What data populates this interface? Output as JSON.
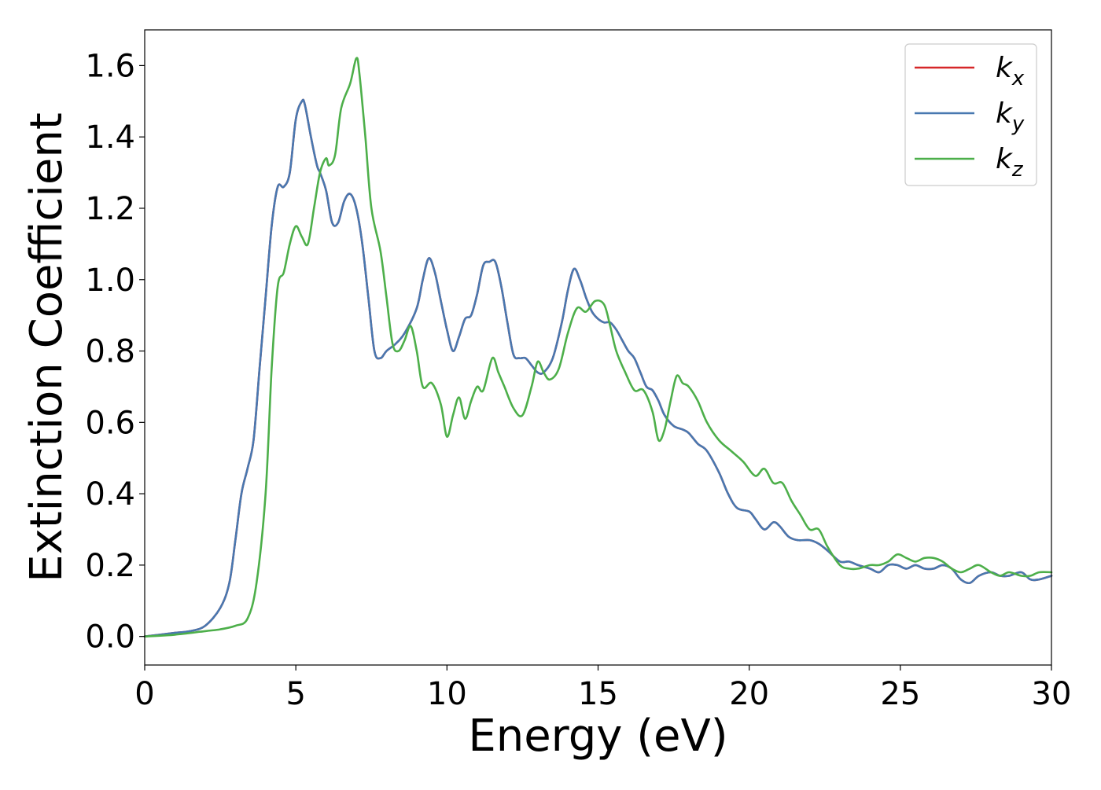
{
  "chart_data": {
    "type": "line",
    "xlabel": "Energy (eV)",
    "ylabel": "Extinction Coefficient",
    "xlim": [
      0,
      30
    ],
    "ylim": [
      -0.08,
      1.7
    ],
    "xticks": [
      0,
      5,
      10,
      15,
      20,
      25,
      30
    ],
    "yticks": [
      0.0,
      0.2,
      0.4,
      0.6,
      0.8,
      1.0,
      1.2,
      1.4,
      1.6
    ],
    "ytick_format": 1,
    "grid": false,
    "legend_position": "top-right",
    "series": [
      {
        "name": "k",
        "subscript": "x",
        "color": "#d62728",
        "x": [
          0,
          1,
          1.5,
          2,
          2.5,
          2.8,
          3.0,
          3.2,
          3.4,
          3.6,
          3.8,
          4.0,
          4.2,
          4.4,
          4.6,
          4.8,
          5.0,
          5.2,
          5.3,
          5.5,
          5.7,
          5.8,
          6.0,
          6.2,
          6.4,
          6.6,
          6.8,
          7.0,
          7.2,
          7.4,
          7.6,
          7.8,
          8.0,
          8.3,
          8.6,
          9.0,
          9.2,
          9.4,
          9.6,
          9.8,
          10.0,
          10.2,
          10.4,
          10.6,
          10.8,
          11.0,
          11.2,
          11.4,
          11.6,
          11.8,
          12.0,
          12.2,
          12.4,
          12.6,
          12.8,
          13.0,
          13.2,
          13.5,
          13.8,
          14.0,
          14.2,
          14.4,
          14.6,
          14.8,
          15.0,
          15.2,
          15.4,
          15.6,
          15.8,
          16.0,
          16.2,
          16.4,
          16.6,
          16.8,
          17.0,
          17.2,
          17.5,
          17.8,
          18.0,
          18.3,
          18.6,
          19.0,
          19.3,
          19.6,
          20.0,
          20.2,
          20.5,
          20.8,
          21.0,
          21.3,
          21.6,
          22.0,
          22.3,
          22.6,
          23.0,
          23.3,
          23.6,
          24.0,
          24.3,
          24.6,
          24.9,
          25.2,
          25.5,
          25.8,
          26.1,
          26.4,
          26.7,
          27.0,
          27.3,
          27.6,
          28.0,
          28.3,
          28.6,
          29.0,
          29.3,
          29.6,
          30.0
        ],
        "y": [
          0.0,
          0.01,
          0.015,
          0.03,
          0.08,
          0.15,
          0.27,
          0.4,
          0.47,
          0.55,
          0.75,
          0.95,
          1.15,
          1.26,
          1.26,
          1.3,
          1.45,
          1.5,
          1.49,
          1.4,
          1.32,
          1.3,
          1.25,
          1.16,
          1.16,
          1.22,
          1.24,
          1.2,
          1.1,
          0.95,
          0.8,
          0.78,
          0.8,
          0.82,
          0.85,
          0.92,
          1.0,
          1.06,
          1.02,
          0.94,
          0.86,
          0.8,
          0.84,
          0.89,
          0.9,
          0.96,
          1.04,
          1.05,
          1.05,
          0.98,
          0.88,
          0.79,
          0.78,
          0.78,
          0.76,
          0.74,
          0.74,
          0.78,
          0.88,
          0.97,
          1.03,
          1.0,
          0.95,
          0.91,
          0.89,
          0.88,
          0.88,
          0.86,
          0.83,
          0.8,
          0.78,
          0.74,
          0.7,
          0.69,
          0.66,
          0.62,
          0.59,
          0.58,
          0.57,
          0.54,
          0.52,
          0.46,
          0.4,
          0.36,
          0.35,
          0.33,
          0.3,
          0.32,
          0.31,
          0.28,
          0.27,
          0.27,
          0.26,
          0.24,
          0.21,
          0.21,
          0.2,
          0.19,
          0.18,
          0.2,
          0.2,
          0.19,
          0.2,
          0.19,
          0.19,
          0.2,
          0.19,
          0.16,
          0.15,
          0.17,
          0.18,
          0.17,
          0.17,
          0.18,
          0.16,
          0.16,
          0.17
        ]
      },
      {
        "name": "k",
        "subscript": "y",
        "color": "#4878b0",
        "x": [
          0,
          1,
          1.5,
          2,
          2.5,
          2.8,
          3.0,
          3.2,
          3.4,
          3.6,
          3.8,
          4.0,
          4.2,
          4.4,
          4.6,
          4.8,
          5.0,
          5.2,
          5.3,
          5.5,
          5.7,
          5.8,
          6.0,
          6.2,
          6.4,
          6.6,
          6.8,
          7.0,
          7.2,
          7.4,
          7.6,
          7.8,
          8.0,
          8.3,
          8.6,
          9.0,
          9.2,
          9.4,
          9.6,
          9.8,
          10.0,
          10.2,
          10.4,
          10.6,
          10.8,
          11.0,
          11.2,
          11.4,
          11.6,
          11.8,
          12.0,
          12.2,
          12.4,
          12.6,
          12.8,
          13.0,
          13.2,
          13.5,
          13.8,
          14.0,
          14.2,
          14.4,
          14.6,
          14.8,
          15.0,
          15.2,
          15.4,
          15.6,
          15.8,
          16.0,
          16.2,
          16.4,
          16.6,
          16.8,
          17.0,
          17.2,
          17.5,
          17.8,
          18.0,
          18.3,
          18.6,
          19.0,
          19.3,
          19.6,
          20.0,
          20.2,
          20.5,
          20.8,
          21.0,
          21.3,
          21.6,
          22.0,
          22.3,
          22.6,
          23.0,
          23.3,
          23.6,
          24.0,
          24.3,
          24.6,
          24.9,
          25.2,
          25.5,
          25.8,
          26.1,
          26.4,
          26.7,
          27.0,
          27.3,
          27.6,
          28.0,
          28.3,
          28.6,
          29.0,
          29.3,
          29.6,
          30.0
        ],
        "y": [
          0.0,
          0.01,
          0.015,
          0.03,
          0.08,
          0.15,
          0.27,
          0.4,
          0.47,
          0.55,
          0.75,
          0.95,
          1.15,
          1.26,
          1.26,
          1.3,
          1.45,
          1.5,
          1.49,
          1.4,
          1.32,
          1.3,
          1.25,
          1.16,
          1.16,
          1.22,
          1.24,
          1.2,
          1.1,
          0.95,
          0.8,
          0.78,
          0.8,
          0.82,
          0.85,
          0.92,
          1.0,
          1.06,
          1.02,
          0.94,
          0.86,
          0.8,
          0.84,
          0.89,
          0.9,
          0.96,
          1.04,
          1.05,
          1.05,
          0.98,
          0.88,
          0.79,
          0.78,
          0.78,
          0.76,
          0.74,
          0.74,
          0.78,
          0.88,
          0.97,
          1.03,
          1.0,
          0.95,
          0.91,
          0.89,
          0.88,
          0.88,
          0.86,
          0.83,
          0.8,
          0.78,
          0.74,
          0.7,
          0.69,
          0.66,
          0.62,
          0.59,
          0.58,
          0.57,
          0.54,
          0.52,
          0.46,
          0.4,
          0.36,
          0.35,
          0.33,
          0.3,
          0.32,
          0.31,
          0.28,
          0.27,
          0.27,
          0.26,
          0.24,
          0.21,
          0.21,
          0.2,
          0.19,
          0.18,
          0.2,
          0.2,
          0.19,
          0.2,
          0.19,
          0.19,
          0.2,
          0.19,
          0.16,
          0.15,
          0.17,
          0.18,
          0.17,
          0.17,
          0.18,
          0.16,
          0.16,
          0.17
        ]
      },
      {
        "name": "k",
        "subscript": "z",
        "color": "#4daf4a",
        "x": [
          0,
          1,
          2,
          2.5,
          3.0,
          3.4,
          3.7,
          4.0,
          4.2,
          4.4,
          4.6,
          4.8,
          5.0,
          5.2,
          5.4,
          5.6,
          5.8,
          6.0,
          6.1,
          6.3,
          6.5,
          6.8,
          7.0,
          7.1,
          7.3,
          7.5,
          7.8,
          8.0,
          8.2,
          8.4,
          8.6,
          8.8,
          9.0,
          9.2,
          9.5,
          9.8,
          10.0,
          10.2,
          10.4,
          10.6,
          10.8,
          11.0,
          11.2,
          11.5,
          11.7,
          11.9,
          12.2,
          12.5,
          12.8,
          13.0,
          13.2,
          13.4,
          13.7,
          14.0,
          14.3,
          14.6,
          14.9,
          15.2,
          15.4,
          15.6,
          15.9,
          16.2,
          16.5,
          16.8,
          17.0,
          17.2,
          17.4,
          17.6,
          17.8,
          18.0,
          18.3,
          18.6,
          19.0,
          19.4,
          19.8,
          20.2,
          20.5,
          20.8,
          21.1,
          21.4,
          21.7,
          22.0,
          22.3,
          22.6,
          23.0,
          23.3,
          23.6,
          24.0,
          24.3,
          24.6,
          24.9,
          25.2,
          25.5,
          25.8,
          26.1,
          26.4,
          26.7,
          27.0,
          27.3,
          27.6,
          28.0,
          28.3,
          28.6,
          29.0,
          29.3,
          29.6,
          30.0
        ],
        "y": [
          0.0,
          0.005,
          0.015,
          0.02,
          0.03,
          0.05,
          0.15,
          0.4,
          0.75,
          0.98,
          1.02,
          1.1,
          1.15,
          1.12,
          1.1,
          1.2,
          1.3,
          1.34,
          1.32,
          1.35,
          1.48,
          1.55,
          1.62,
          1.58,
          1.4,
          1.2,
          1.08,
          0.95,
          0.82,
          0.8,
          0.83,
          0.87,
          0.8,
          0.7,
          0.71,
          0.65,
          0.56,
          0.62,
          0.67,
          0.61,
          0.66,
          0.7,
          0.69,
          0.78,
          0.74,
          0.7,
          0.64,
          0.62,
          0.7,
          0.77,
          0.74,
          0.72,
          0.75,
          0.85,
          0.92,
          0.91,
          0.94,
          0.93,
          0.87,
          0.8,
          0.74,
          0.69,
          0.69,
          0.63,
          0.55,
          0.58,
          0.66,
          0.73,
          0.71,
          0.7,
          0.66,
          0.6,
          0.55,
          0.52,
          0.49,
          0.45,
          0.47,
          0.43,
          0.43,
          0.38,
          0.34,
          0.3,
          0.3,
          0.25,
          0.2,
          0.19,
          0.19,
          0.2,
          0.2,
          0.21,
          0.23,
          0.22,
          0.21,
          0.22,
          0.22,
          0.21,
          0.19,
          0.18,
          0.19,
          0.2,
          0.18,
          0.17,
          0.18,
          0.17,
          0.17,
          0.18,
          0.18
        ]
      }
    ]
  }
}
